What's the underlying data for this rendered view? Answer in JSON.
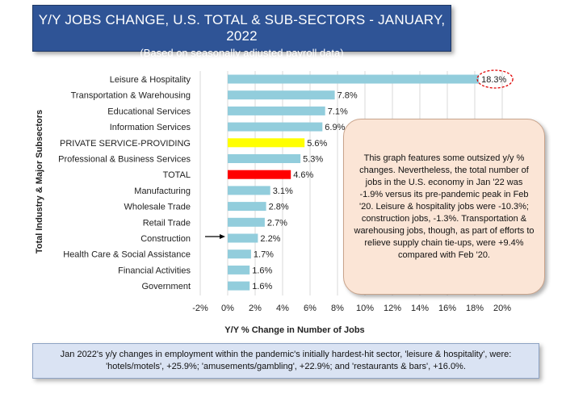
{
  "header": {
    "title": "Y/Y JOBS CHANGE, U.S. TOTAL & SUB-SECTORS - JANUARY, 2022",
    "subtitle": "(Based on seasonally adjusted payroll data)"
  },
  "callout_text": "This graph features some outsized y/y % changes. Nevertheless, the total number of jobs in the U.S. economy in Jan '22 was -1.9% versus its pre-pandemic peak in Feb '20. Leisure & hospitality jobs were -10.3%; construction jobs, -1.3%. Transportation & warehousing jobs, though, as part of efforts to relieve supply chain tie-ups, were +9.4% compared with Feb '20.",
  "footnote": "Jan 2022's y/y changes in employment within the pandemic's initially hardest-hit sector, 'leisure & hospitality', were: 'hotels/motels', +25.9%; 'amusements/gambling', +22.9%; and 'restaurants & bars', +16.0%.",
  "chart_data": {
    "type": "bar",
    "orientation": "horizontal",
    "xlabel": "Y/Y % Change in Number of Jobs",
    "ylabel": "Total Industry & Major Subsectors",
    "xlim": [
      -2,
      20
    ],
    "xticks": [
      "-2%",
      "0%",
      "2%",
      "4%",
      "6%",
      "8%",
      "10%",
      "12%",
      "14%",
      "16%",
      "18%",
      "20%"
    ],
    "grid": true,
    "categories": [
      "Leisure & Hospitality",
      "Transportation & Warehousing",
      "Educational Services",
      "Information Services",
      "PRIVATE SERVICE-PROVIDING",
      "Professional & Business Services",
      "TOTAL",
      "Manufacturing",
      "Wholesale Trade",
      "Retail Trade",
      "Construction",
      "Health Care & Social Assistance",
      "Financial Activities",
      "Government"
    ],
    "values": [
      18.3,
      7.8,
      7.1,
      6.9,
      5.6,
      5.3,
      4.6,
      3.1,
      2.8,
      2.7,
      2.2,
      1.7,
      1.6,
      1.6
    ],
    "labels": [
      "18.3%",
      "7.8%",
      "7.1%",
      "6.9%",
      "5.6%",
      "5.3%",
      "4.6%",
      "3.1%",
      "2.8%",
      "2.7%",
      "2.2%",
      "1.7%",
      "1.6%",
      "1.6%"
    ],
    "colors": [
      "#92cddc",
      "#92cddc",
      "#92cddc",
      "#92cddc",
      "#ffff00",
      "#92cddc",
      "#ff0000",
      "#92cddc",
      "#92cddc",
      "#92cddc",
      "#92cddc",
      "#92cddc",
      "#92cddc",
      "#92cddc"
    ],
    "highlighted_label": "Leisure & Hospitality",
    "arrow_category": "Construction"
  }
}
